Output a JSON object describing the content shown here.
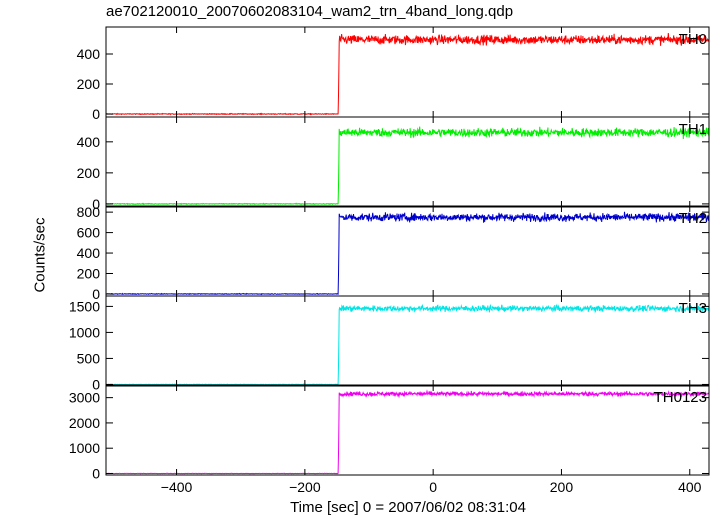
{
  "title": "ae702120010_20070602083104_wam2_trn_4band_long.qdp",
  "chart_data": {
    "type": "line",
    "xlabel": "Time [sec] 0 = 2007/06/02 08:31:04",
    "ylabel": "Counts/sec",
    "xlim": [
      -510,
      430
    ],
    "xticks": [
      -400,
      -200,
      0,
      200,
      400
    ],
    "xtick_labels": [
      "−400",
      "−200",
      "0",
      "200",
      "400"
    ],
    "onset_time": -148,
    "panels": [
      {
        "name": "TH0",
        "color": "#ff0000",
        "ylim": [
          -20,
          580
        ],
        "yticks": [
          0,
          200,
          400
        ],
        "pre_level": 0,
        "post_level": 495,
        "noise": 22
      },
      {
        "name": "TH1",
        "color": "#00ee00",
        "ylim": [
          -20,
          560
        ],
        "yticks": [
          0,
          200,
          400
        ],
        "pre_level": 0,
        "post_level": 460,
        "noise": 20
      },
      {
        "name": "TH2",
        "color": "#0000cc",
        "ylim": [
          -20,
          860
        ],
        "yticks": [
          0,
          200,
          400,
          600,
          800
        ],
        "pre_level": 0,
        "post_level": 750,
        "noise": 28
      },
      {
        "name": "TH3",
        "color": "#00e5e5",
        "ylim": [
          -30,
          1700
        ],
        "yticks": [
          0,
          500,
          1000,
          1500
        ],
        "pre_level": 0,
        "post_level": 1460,
        "noise": 40
      },
      {
        "name": "TH0123",
        "color": "#ee00ee",
        "ylim": [
          -60,
          3500
        ],
        "yticks": [
          0,
          1000,
          2000,
          3000
        ],
        "pre_level": 0,
        "post_level": 3150,
        "noise": 60
      }
    ]
  }
}
